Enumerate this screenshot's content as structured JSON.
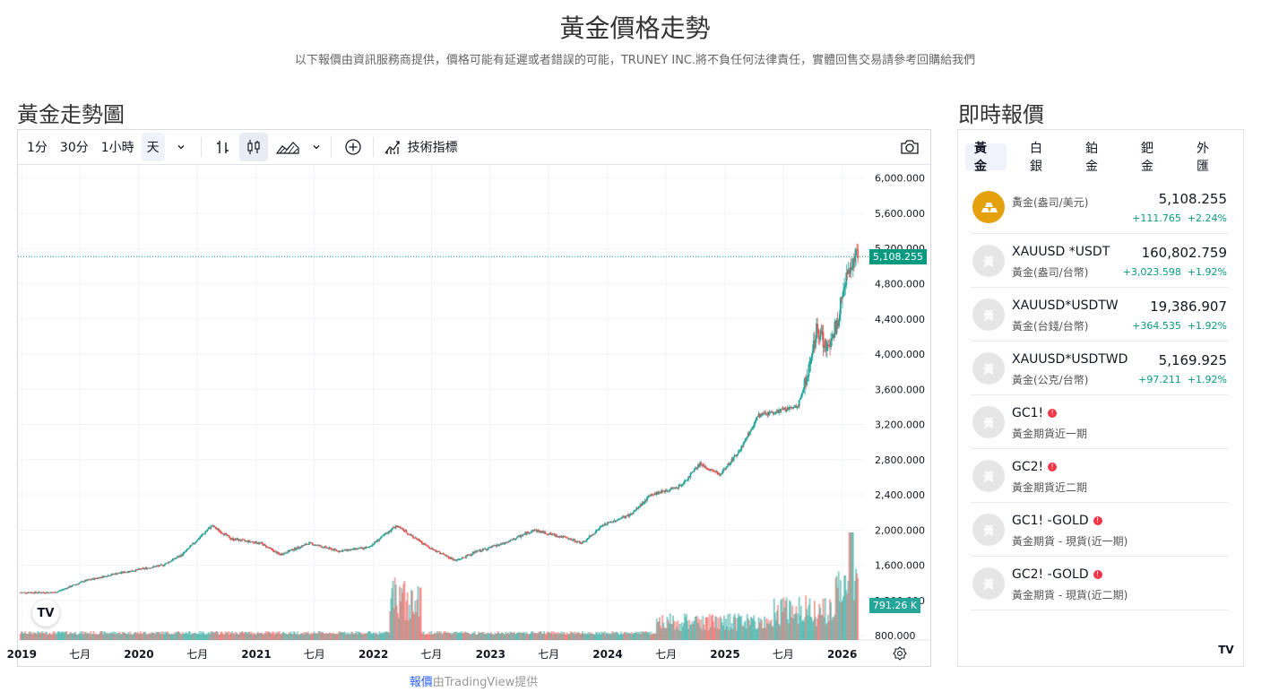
{
  "page": {
    "title": "黃金價格走勢",
    "disclaimer": "以下報價由資訊服務商提供，價格可能有延遲或者錯誤的可能，TRUNEY INC.將不負任何法律責任，實體回售交易請參考回購給我們"
  },
  "chart_section": {
    "title": "黃金走勢圖",
    "toolbar": {
      "intervals": [
        "1分",
        "30分",
        "1小時",
        "天"
      ],
      "active_interval": "天",
      "indicators_label": "技術指標"
    },
    "credit_highlight": "報價",
    "credit_rest": "由TradingView提供",
    "last_price_label": "5,108.255",
    "volume_label": "791.26 K"
  },
  "chart_data": {
    "type": "candlestick",
    "price_axis_ticks": [
      "6,000.000",
      "5,600.000",
      "5,200.000",
      "4,800.000",
      "4,400.000",
      "4,000.000",
      "3,600.000",
      "3,200.000",
      "2,800.000",
      "2,400.000",
      "2,000.000",
      "1,600.000",
      "1,200.000",
      "800.000"
    ],
    "time_axis_ticks": [
      "2019",
      "七月",
      "2020",
      "七月",
      "2021",
      "七月",
      "2022",
      "七月",
      "2023",
      "七月",
      "2024",
      "七月",
      "2025",
      "七月",
      "2026"
    ],
    "ylim": [
      750,
      6150
    ],
    "last_price": 5108.255,
    "approx_closes": [
      [
        "2019-01",
        1290
      ],
      [
        "2019-04",
        1290
      ],
      [
        "2019-07",
        1420
      ],
      [
        "2019-10",
        1500
      ],
      [
        "2020-01",
        1560
      ],
      [
        "2020-03",
        1600
      ],
      [
        "2020-05",
        1720
      ],
      [
        "2020-08",
        2050
      ],
      [
        "2020-10",
        1900
      ],
      [
        "2021-01",
        1850
      ],
      [
        "2021-03",
        1720
      ],
      [
        "2021-06",
        1850
      ],
      [
        "2021-09",
        1760
      ],
      [
        "2021-12",
        1800
      ],
      [
        "2022-03",
        2050
      ],
      [
        "2022-06",
        1820
      ],
      [
        "2022-09",
        1650
      ],
      [
        "2022-11",
        1750
      ],
      [
        "2023-02",
        1850
      ],
      [
        "2023-05",
        2000
      ],
      [
        "2023-08",
        1920
      ],
      [
        "2023-10",
        1850
      ],
      [
        "2023-12",
        2050
      ],
      [
        "2024-03",
        2180
      ],
      [
        "2024-05",
        2400
      ],
      [
        "2024-08",
        2500
      ],
      [
        "2024-10",
        2750
      ],
      [
        "2024-12",
        2630
      ],
      [
        "2025-02",
        2900
      ],
      [
        "2025-04",
        3300
      ],
      [
        "2025-06",
        3350
      ],
      [
        "2025-08",
        3400
      ],
      [
        "2025-09",
        3750
      ],
      [
        "2025-10",
        4300
      ],
      [
        "2025-11",
        4050
      ],
      [
        "2025-12",
        4350
      ],
      [
        "2026-01",
        4950
      ],
      [
        "2026-02",
        5108
      ]
    ],
    "grid": true,
    "legend": "none"
  },
  "quotes_section": {
    "title": "即時報價",
    "tabs": [
      "黃金",
      "白銀",
      "鉑金",
      "鈀金",
      "外匯"
    ],
    "active_tab": "黃金",
    "rows": [
      {
        "symbol": "",
        "desc": "黃金(盎司/美元)",
        "price": "5,108.255",
        "change": "+111.765",
        "pct": "+2.24%",
        "logo": "gold-bars-icon"
      },
      {
        "symbol": "XAUUSD *USDT",
        "desc": "黃金(盎司/台幣)",
        "price": "160,802.759",
        "change": "+3,023.598",
        "pct": "+1.92%",
        "logo": "gray-coin-icon"
      },
      {
        "symbol": "XAUUSD*USDTW",
        "desc": "黃金(台錢/台幣)",
        "price": "19,386.907",
        "change": "+364.535",
        "pct": "+1.92%",
        "logo": "gray-coin-icon"
      },
      {
        "symbol": "XAUUSD*USDTWD",
        "desc": "黃金(公克/台幣)",
        "price": "5,169.925",
        "change": "+97.211",
        "pct": "+1.92%",
        "logo": "gray-coin-icon"
      },
      {
        "symbol": "GC1!",
        "desc": "黃金期貨近一期",
        "price": "",
        "change": "",
        "pct": "",
        "logo": "gray-coin-icon"
      },
      {
        "symbol": "GC2!",
        "desc": "黃金期貨近二期",
        "price": "",
        "change": "",
        "pct": "",
        "logo": "gray-coin-icon"
      },
      {
        "symbol": "GC1! -GOLD",
        "desc": "黃金期貨 - 現貨(近一期)",
        "price": "",
        "change": "",
        "pct": "",
        "logo": "gray-coin-icon"
      },
      {
        "symbol": "GC2! -GOLD",
        "desc": "黃金期貨 - 現貨(近二期)",
        "price": "",
        "change": "",
        "pct": "",
        "logo": "gray-coin-icon"
      }
    ]
  },
  "colors": {
    "up": "#26a69a",
    "down": "#ef5350",
    "price_line": "#089981",
    "accent": "#2962ff",
    "gold_logo": "#e5a00d"
  }
}
